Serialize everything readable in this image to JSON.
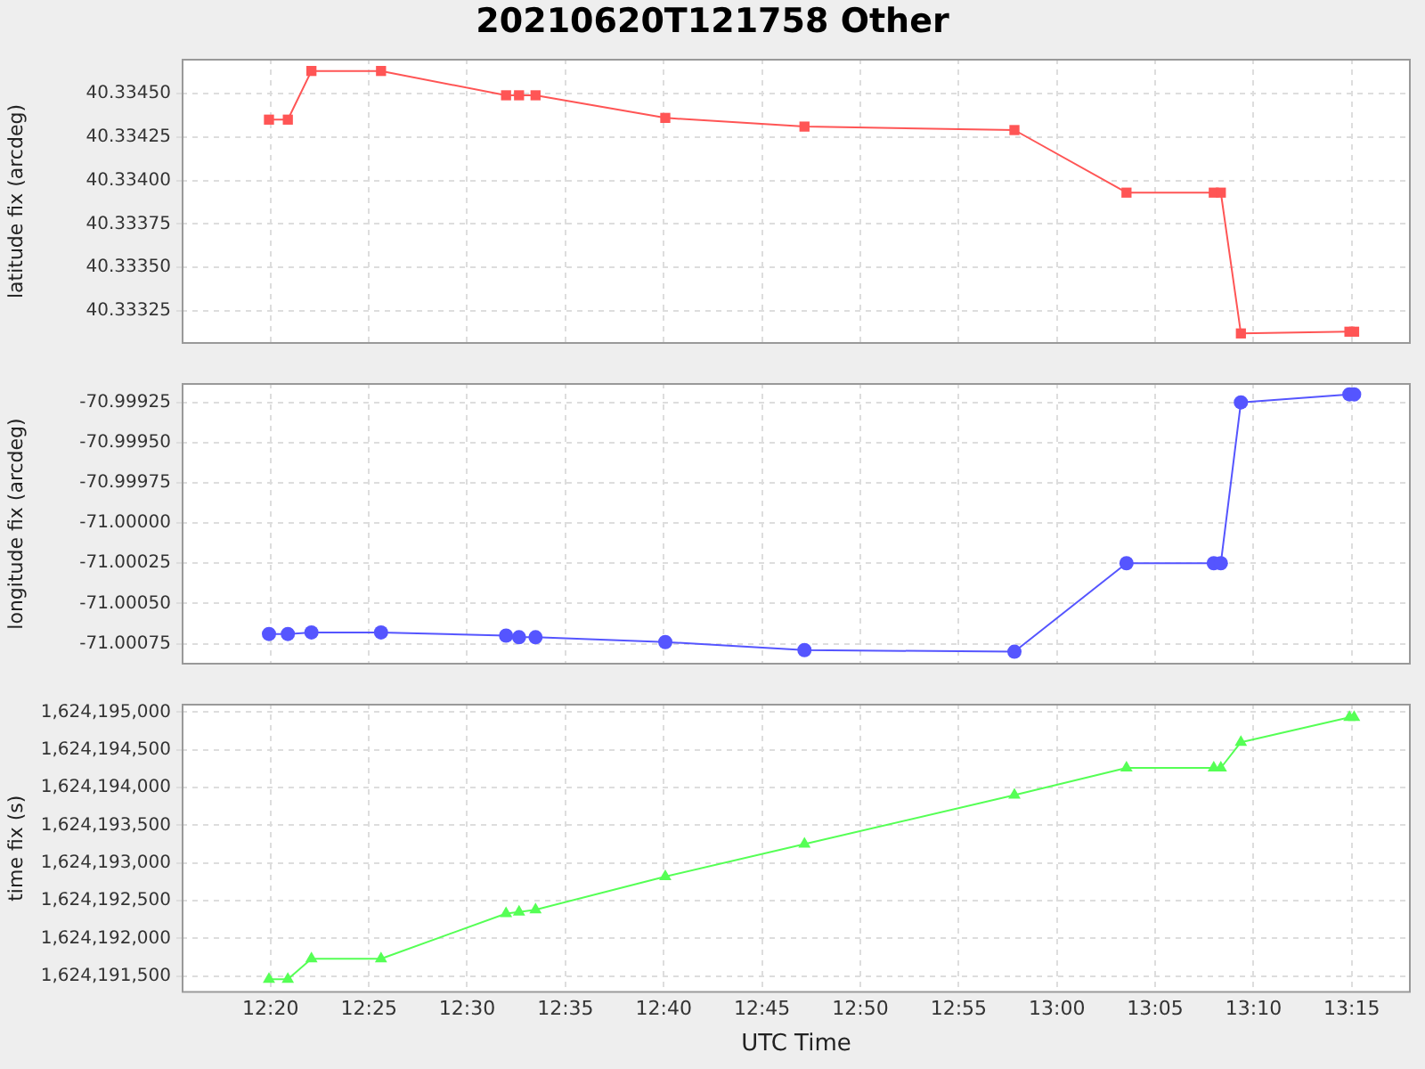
{
  "chart_data": [
    {
      "type": "line",
      "title": "20210620T121758 Other",
      "ylabel": "latitude fix (arcdeg)",
      "marker": "square",
      "grid": true,
      "tick_labels": "y",
      "x": [
        12.332,
        12.348,
        12.368,
        12.427,
        12.533,
        12.544,
        12.558,
        12.668,
        12.786,
        12.964,
        13.059,
        13.133,
        13.139,
        13.156,
        13.248,
        13.252
      ],
      "series": [
        {
          "color": "#ff5555",
          "values": [
            40.33435,
            40.33435,
            40.33463,
            40.33463,
            40.33449,
            40.33449,
            40.33449,
            40.33436,
            40.33431,
            40.33429,
            40.33393,
            40.33393,
            40.33393,
            40.33312,
            40.33313,
            40.33313
          ]
        }
      ],
      "xlim": [
        12.258,
        13.3
      ],
      "xticks": [
        {
          "value": 12.3333,
          "label": null
        },
        {
          "value": 12.4167,
          "label": null
        },
        {
          "value": 12.5,
          "label": null
        },
        {
          "value": 12.5833,
          "label": null
        },
        {
          "value": 12.6667,
          "label": null
        },
        {
          "value": 12.75,
          "label": null
        },
        {
          "value": 12.8333,
          "label": null
        },
        {
          "value": 12.9167,
          "label": null
        },
        {
          "value": 13.0,
          "label": null
        },
        {
          "value": 13.0833,
          "label": null
        },
        {
          "value": 13.1667,
          "label": null
        },
        {
          "value": 13.25,
          "label": null
        }
      ],
      "ylim": [
        40.33306,
        40.3347
      ],
      "yticks": [
        {
          "value": 40.33325,
          "label": "40.33325"
        },
        {
          "value": 40.3335,
          "label": "40.33350"
        },
        {
          "value": 40.33375,
          "label": "40.33375"
        },
        {
          "value": 40.334,
          "label": "40.33400"
        },
        {
          "value": 40.33425,
          "label": "40.33425"
        },
        {
          "value": 40.3345,
          "label": "40.33450"
        }
      ]
    },
    {
      "type": "line",
      "ylabel": "longitude fix (arcdeg)",
      "marker": "circle",
      "grid": true,
      "tick_labels": "y",
      "x": [
        12.332,
        12.348,
        12.368,
        12.427,
        12.533,
        12.544,
        12.558,
        12.668,
        12.786,
        12.964,
        13.059,
        13.133,
        13.139,
        13.156,
        13.248,
        13.252
      ],
      "series": [
        {
          "color": "#5555ff",
          "values": [
            -71.00069,
            -71.00069,
            -71.00068,
            -71.00068,
            -71.0007,
            -71.00071,
            -71.00071,
            -71.00074,
            -71.00079,
            -71.0008,
            -71.00025,
            -71.00025,
            -71.00025,
            -70.99925,
            -70.9992,
            -70.9992
          ]
        }
      ],
      "xlim": [
        12.258,
        13.3
      ],
      "xticks": [
        {
          "value": 12.3333,
          "label": null
        },
        {
          "value": 12.4167,
          "label": null
        },
        {
          "value": 12.5,
          "label": null
        },
        {
          "value": 12.5833,
          "label": null
        },
        {
          "value": 12.6667,
          "label": null
        },
        {
          "value": 12.75,
          "label": null
        },
        {
          "value": 12.8333,
          "label": null
        },
        {
          "value": 12.9167,
          "label": null
        },
        {
          "value": 13.0,
          "label": null
        },
        {
          "value": 13.0833,
          "label": null
        },
        {
          "value": 13.1667,
          "label": null
        },
        {
          "value": 13.25,
          "label": null
        }
      ],
      "ylim": [
        -71.00088,
        -70.99913
      ],
      "yticks": [
        {
          "value": -71.00075,
          "label": "-71.00075"
        },
        {
          "value": -71.0005,
          "label": "-71.00050"
        },
        {
          "value": -71.00025,
          "label": "-71.00025"
        },
        {
          "value": -71.0,
          "label": "-71.00000"
        },
        {
          "value": -70.99975,
          "label": "-70.99975"
        },
        {
          "value": -70.9995,
          "label": "-70.99950"
        },
        {
          "value": -70.99925,
          "label": "-70.99925"
        }
      ]
    },
    {
      "type": "line",
      "xlabel": "UTC Time",
      "ylabel": "time fix (s)",
      "marker": "triangle",
      "grid": true,
      "x": [
        12.332,
        12.348,
        12.368,
        12.427,
        12.533,
        12.544,
        12.558,
        12.668,
        12.786,
        12.964,
        13.059,
        13.133,
        13.139,
        13.156,
        13.248,
        13.252
      ],
      "series": [
        {
          "color": "#55ff55",
          "values": [
            1624191460,
            1624191460,
            1624191730,
            1624191730,
            1624192330,
            1624192350,
            1624192380,
            1624192820,
            1624193250,
            1624193900,
            1624194260,
            1624194260,
            1624194260,
            1624194600,
            1624194930,
            1624194930
          ]
        }
      ],
      "xlim": [
        12.258,
        13.3
      ],
      "xticks": [
        {
          "value": 12.3333,
          "label": "12:20"
        },
        {
          "value": 12.4167,
          "label": "12:25"
        },
        {
          "value": 12.5,
          "label": "12:30"
        },
        {
          "value": 12.5833,
          "label": "12:35"
        },
        {
          "value": 12.6667,
          "label": "12:40"
        },
        {
          "value": 12.75,
          "label": "12:45"
        },
        {
          "value": 12.8333,
          "label": "12:50"
        },
        {
          "value": 12.9167,
          "label": "12:55"
        },
        {
          "value": 13.0,
          "label": "13:00"
        },
        {
          "value": 13.0833,
          "label": "13:05"
        },
        {
          "value": 13.1667,
          "label": "13:10"
        },
        {
          "value": 13.25,
          "label": "13:15"
        }
      ],
      "ylim": [
        1624191280,
        1624195110
      ],
      "yticks": [
        {
          "value": 1624191500,
          "label": "1,624,191,500"
        },
        {
          "value": 1624192000,
          "label": "1,624,192,000"
        },
        {
          "value": 1624192500,
          "label": "1,624,192,500"
        },
        {
          "value": 1624193000,
          "label": "1,624,193,000"
        },
        {
          "value": 1624193500,
          "label": "1,624,193,500"
        },
        {
          "value": 1624194000,
          "label": "1,624,194,000"
        },
        {
          "value": 1624194500,
          "label": "1,624,194,500"
        },
        {
          "value": 1624195000,
          "label": "1,624,195,000"
        }
      ]
    }
  ]
}
